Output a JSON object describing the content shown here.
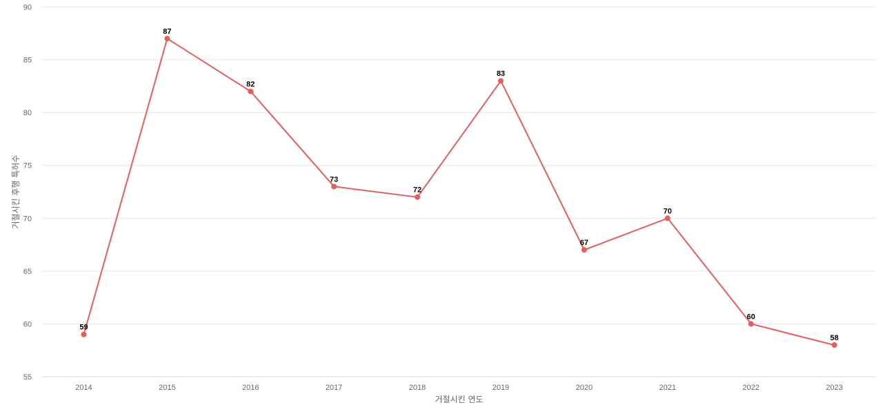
{
  "chart_data": {
    "type": "line",
    "title": "",
    "xlabel": "거절시킨 연도",
    "ylabel": "거절시킨 후행 특허수",
    "categories": [
      "2014",
      "2015",
      "2016",
      "2017",
      "2018",
      "2019",
      "2020",
      "2021",
      "2022",
      "2023"
    ],
    "series": [
      {
        "values": [
          59,
          87,
          82,
          73,
          72,
          83,
          67,
          70,
          60,
          58
        ],
        "color": "#e85c5c"
      }
    ],
    "ylim": [
      55,
      90
    ],
    "yticks": [
      55,
      60,
      65,
      70,
      75,
      80,
      85,
      90
    ],
    "grid": true,
    "legend": "none",
    "data_labels": true
  }
}
